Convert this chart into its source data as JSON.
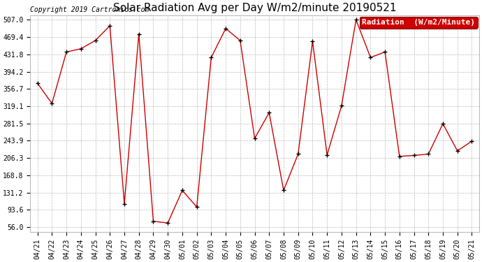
{
  "title": "Solar Radiation Avg per Day W/m2/minute 20190521",
  "copyright": "Copyright 2019 Cartronics.com",
  "legend_label": "Radiation  (W/m2/Minute)",
  "dates": [
    "04/21",
    "04/22",
    "04/23",
    "04/24",
    "04/25",
    "04/26",
    "04/27",
    "04/28",
    "04/29",
    "04/30",
    "05/01",
    "05/02",
    "05/03",
    "05/04",
    "05/05",
    "05/06",
    "05/07",
    "05/08",
    "05/09",
    "05/10",
    "05/11",
    "05/12",
    "05/13",
    "05/14",
    "05/15",
    "05/16",
    "05/17",
    "05/18",
    "05/19",
    "05/20",
    "05/21"
  ],
  "values": [
    369,
    325,
    437,
    444,
    462,
    494,
    107,
    476,
    69,
    65,
    136,
    100,
    425,
    488,
    462,
    249,
    305,
    136,
    215,
    460,
    213,
    320,
    507,
    425,
    437,
    210,
    212,
    215,
    281,
    222,
    243
  ],
  "line_color": "#cc0000",
  "marker_color": "#000000",
  "bg_color": "#ffffff",
  "grid_color": "#bbbbbb",
  "yticks": [
    56.0,
    93.6,
    131.2,
    168.8,
    206.3,
    243.9,
    281.5,
    319.1,
    356.7,
    394.2,
    431.8,
    469.4,
    507.0
  ],
  "ymin": 46.0,
  "ymax": 517.0,
  "legend_bg": "#cc0000",
  "legend_text_color": "#ffffff",
  "title_fontsize": 11,
  "copyright_fontsize": 7,
  "tick_fontsize": 7,
  "legend_fontsize": 8
}
